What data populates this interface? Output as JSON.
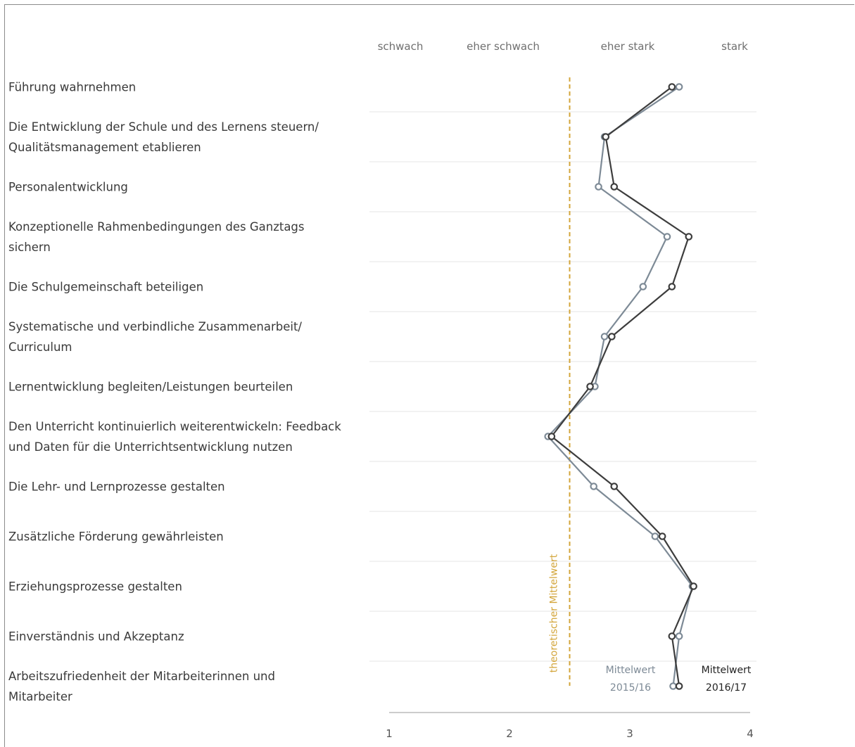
{
  "chart_data": {
    "type": "line",
    "scale_labels": [
      "schwach",
      "eher schwach",
      "eher stark",
      "stark"
    ],
    "categories": [
      [
        "Führung wahrnehmen"
      ],
      [
        "Die Entwicklung der Schule und des Lernens steuern/",
        "Qualitätsmanagement etablieren"
      ],
      [
        "Personalentwicklung"
      ],
      [
        "Konzeptionelle Rahmenbedingungen des Ganztags",
        "sichern"
      ],
      [
        "Die Schulgemeinschaft beteiligen"
      ],
      [
        "Systematische und verbindliche Zusammenarbeit/",
        "Curriculum"
      ],
      [
        "Lernentwicklung begleiten/Leistungen beurteilen"
      ],
      [
        "Den Unterricht kontinuierlich weiterentwickeln: Feedback",
        "und Daten für die Unterrichtsentwicklung nutzen"
      ],
      [
        "Die Lehr- und Lernprozesse gestalten"
      ],
      [
        "Zusätzliche Förderung gewährleisten"
      ],
      [
        "Erziehungsprozesse gestalten"
      ],
      [
        "Einverständnis und Akzeptanz"
      ],
      [
        "Arbeitszufriedenheit der Mitarbeiterinnen und",
        "Mitarbeiter"
      ]
    ],
    "series": [
      {
        "name": [
          "Mittelwert",
          "2015/16"
        ],
        "color": "#7d8a96",
        "values": [
          3.41,
          2.79,
          2.74,
          3.31,
          3.11,
          2.79,
          2.71,
          2.32,
          2.7,
          3.21,
          3.52,
          3.41,
          3.36
        ]
      },
      {
        "name": [
          "Mittelwert",
          "2016/17"
        ],
        "color": "#3d3d3d",
        "values": [
          3.35,
          2.8,
          2.87,
          3.49,
          3.35,
          2.85,
          2.67,
          2.35,
          2.87,
          3.27,
          3.53,
          3.35,
          3.41
        ]
      }
    ],
    "reference_line": {
      "value": 2.5,
      "label": "theoretischer Mittelwert",
      "color": "#d3a53a"
    },
    "x_ticks": [
      1,
      2,
      3,
      4
    ],
    "xlim": [
      1,
      4
    ],
    "grid": true
  }
}
